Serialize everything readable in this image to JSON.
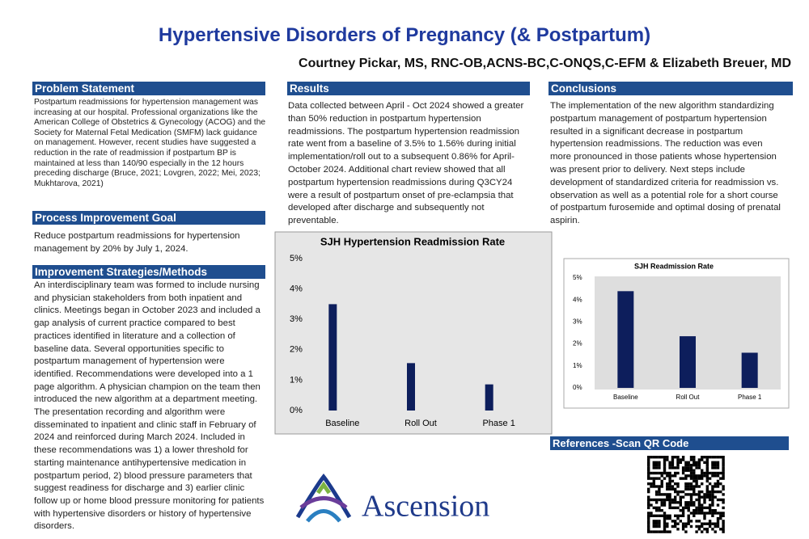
{
  "header": {
    "title": "Hypertensive Disorders of Pregnancy (& Postpartum)",
    "authors": "Courtney Pickar, MS, RNC-OB,ACNS-BC,C-ONQS,C-EFM & Elizabeth Breuer, MD"
  },
  "problem_statement": {
    "heading": "Problem Statement",
    "text": "Postpartum readmissions for hypertension management was increasing at our hospital.  Professional organizations like the American College of Obstetrics & Gynecology (ACOG) and the Society for Maternal Fetal Medication (SMFM) lack guidance on management. However, recent studies have suggested a reduction in the rate of readmission if postpartum BP is maintained at less than 140/90 especially in the 12 hours preceding discharge (Bruce, 2021; Lovgren, 2022; Mei, 2023; Mukhtarova, 2021)"
  },
  "goal": {
    "heading": "Process Improvement Goal",
    "text": "Reduce postpartum readmissions for hypertension management by 20% by July 1, 2024."
  },
  "methods": {
    "heading": "Improvement Strategies/Methods",
    "text": "An interdisciplinary team was formed to include nursing and physician stakeholders from both inpatient and clinics.  Meetings began in October 2023 and included a gap analysis of current practice compared to best practices identified in literature and a collection of baseline data.  Several opportunities specific to postpartum management of hypertension were identified.  Recommendations were developed into a 1 page algorithm.  A physician champion on the team then introduced the new algorithm at a department meeting.  The presentation recording and algorithm were disseminated to inpatient and clinic staff in February of 2024 and reinforced during March 2024.  Included in these recommendations was 1) a lower threshold for starting maintenance antihypertensive medication in postpartum period, 2)  blood pressure parameters that suggest readiness for discharge and 3) earlier clinic follow up or home blood pressure monitoring for patients with hypertensive disorders or history of hypertensive disorders."
  },
  "results": {
    "heading": "Results",
    "text": "Data collected between  April - Oct 2024 showed a greater than 50% reduction in postpartum hypertension readmissions.  The postpartum hypertension readmission rate went from a baseline of 3.5% to 1.56% during initial implementation/roll out to a subsequent 0.86% for April-October 2024.  Additional chart review showed that all postpartum hypertension readmissions during Q3CY24 were a result of postpartum onset of pre-eclampsia that developed after discharge and subsequently not preventable."
  },
  "conclusions": {
    "heading": "Conclusions",
    "text": "The implementation of the new algorithm standardizing postpartum management of postpartum hypertension resulted in a significant decrease in postpartum hypertension readmissions.  The reduction was even more pronounced in those patients whose hypertension was present prior to delivery.  Next steps include development of standardized criteria for readmission vs. observation as well as a potential role for a short course of postpartum furosemide and optimal dosing of prenatal aspirin."
  },
  "references": {
    "heading": "References -Scan QR Code"
  },
  "logo": {
    "text": "Ascension"
  },
  "chart_data": [
    {
      "type": "bar",
      "title": "SJH Hypertension Readmission Rate",
      "categories": [
        "Baseline",
        "Roll Out",
        "Phase 1"
      ],
      "values": [
        3.5,
        1.56,
        0.86
      ],
      "color": "#0d1e5c",
      "ylim": [
        0,
        5
      ],
      "yticks": [
        {
          "value": 0,
          "label": "0%"
        },
        {
          "value": 1,
          "label": "1%"
        },
        {
          "value": 2,
          "label": "2%"
        },
        {
          "value": 3,
          "label": "3%"
        },
        {
          "value": 4,
          "label": "4%"
        },
        {
          "value": 5,
          "label": "5%"
        }
      ]
    },
    {
      "type": "bar",
      "title": "SJH  Readmission Rate",
      "categories": [
        "Baseline",
        "Roll Out",
        "Phase 1"
      ],
      "values": [
        4.4,
        2.35,
        1.6
      ],
      "color": "#0d1e5c",
      "ylim": [
        0,
        5
      ],
      "yticks": [
        {
          "value": 0,
          "label": "0%"
        },
        {
          "value": 1,
          "label": "1%"
        },
        {
          "value": 2,
          "label": "2%"
        },
        {
          "value": 3,
          "label": "3%"
        },
        {
          "value": 4,
          "label": "4%"
        },
        {
          "value": 5,
          "label": "5%"
        }
      ]
    }
  ]
}
